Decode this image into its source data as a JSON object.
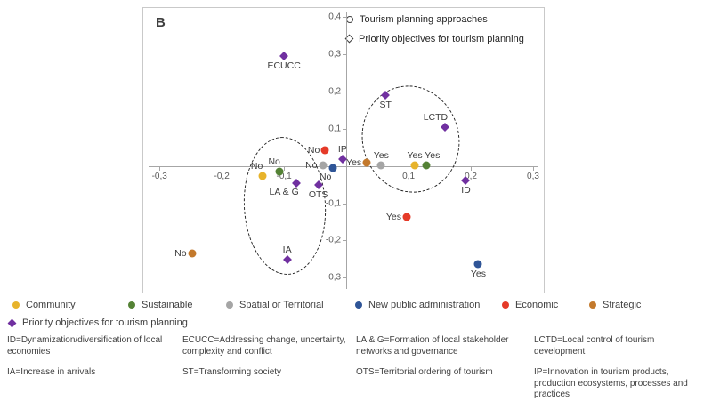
{
  "plot_legend": [
    {
      "marker": "circle",
      "label": "Tourism planning approaches"
    },
    {
      "marker": "diamond",
      "label": "Priority objectives for tourism planning"
    }
  ],
  "approach_legend": [
    {
      "label": "Community",
      "color": "#e7b32b"
    },
    {
      "label": "Sustainable",
      "color": "#548235"
    },
    {
      "label": "Spatial or Territorial",
      "color": "#a5a5a5"
    },
    {
      "label": "New public administration",
      "color": "#2f5597"
    },
    {
      "label": "Economic",
      "color": "#e53a28"
    },
    {
      "label": "Strategic",
      "color": "#c3792c"
    }
  ],
  "priority_legend": {
    "label": "Priority objectives for tourism planning",
    "color": "#7030a0"
  },
  "definitions": [
    "ID=Dynamization/diversification of local economies",
    "ECUCC=Addressing change, uncertainty, complexity and conflict",
    "LA & G=Formation of local stakeholder networks and governance",
    "LCTD=Local control of tourism development",
    "IA=Increase in arrivals",
    "ST=Transforming society",
    "OTS=Territorial ordering of tourism",
    "IP=Innovation in tourism products, production ecosystems, processes and practices"
  ],
  "chart_data": {
    "type": "scatter",
    "title": "B",
    "xlim": [
      -0.326,
      0.32
    ],
    "ylim": [
      -0.345,
      0.425
    ],
    "xticks": [
      -0.3,
      -0.2,
      -0.1,
      0.1,
      0.2,
      0.3
    ],
    "yticks": [
      0.4,
      0.3,
      0.2,
      0.1,
      -0.1,
      -0.2,
      -0.3
    ],
    "decimal_separator": ",",
    "series": [
      {
        "name": "Community",
        "marker": "circle",
        "color": "#e7b32b",
        "points": [
          {
            "label": "No",
            "x": -0.135,
            "y": -0.028,
            "label_pos": "above-left"
          },
          {
            "label": "Yes",
            "x": 0.11,
            "y": 0.001,
            "label_pos": "above"
          }
        ]
      },
      {
        "name": "Sustainable",
        "marker": "circle",
        "color": "#548235",
        "points": [
          {
            "label": "No",
            "x": -0.107,
            "y": -0.015,
            "label_pos": "above-left"
          },
          {
            "label": "Yes",
            "x": 0.128,
            "y": 0.001,
            "label_pos": "above-right"
          }
        ]
      },
      {
        "name": "Spatial or Territorial",
        "marker": "circle",
        "color": "#a5a5a5",
        "points": [
          {
            "label": "No",
            "x": -0.038,
            "y": 0.002,
            "label_pos": "left"
          },
          {
            "label": "Yes",
            "x": 0.056,
            "y": 0.001,
            "label_pos": "above"
          }
        ]
      },
      {
        "name": "New public administration",
        "marker": "circle",
        "color": "#2f5597",
        "points": [
          {
            "label": "No",
            "x": -0.022,
            "y": -0.006,
            "label_pos": "below-left"
          },
          {
            "label": "Yes",
            "x": 0.212,
            "y": -0.264,
            "label_pos": "below"
          }
        ]
      },
      {
        "name": "Economic",
        "marker": "circle",
        "color": "#e53a28",
        "points": [
          {
            "label": "No",
            "x": -0.034,
            "y": 0.043,
            "label_pos": "left"
          },
          {
            "label": "Yes",
            "x": 0.097,
            "y": -0.137,
            "label_pos": "left"
          }
        ]
      },
      {
        "name": "Strategic",
        "marker": "circle",
        "color": "#c3792c",
        "points": [
          {
            "label": "No",
            "x": -0.248,
            "y": -0.235,
            "label_pos": "left"
          },
          {
            "label": "Yes",
            "x": 0.033,
            "y": 0.008,
            "label_pos": "left"
          }
        ]
      },
      {
        "name": "Priority objectives for tourism planning",
        "marker": "diamond",
        "color": "#7030a0",
        "points": [
          {
            "label": "ECUCC",
            "x": -0.1,
            "y": 0.295,
            "label_pos": "below"
          },
          {
            "label": "ST",
            "x": 0.063,
            "y": 0.19,
            "label_pos": "below"
          },
          {
            "label": "LCTD",
            "x": 0.158,
            "y": 0.105,
            "label_pos": "above-left"
          },
          {
            "label": "IP",
            "x": -0.006,
            "y": 0.018,
            "label_pos": "above"
          },
          {
            "label": "ID",
            "x": 0.192,
            "y": -0.04,
            "label_pos": "below"
          },
          {
            "label": "LA & G",
            "x": -0.08,
            "y": -0.046,
            "label_pos": "below-left"
          },
          {
            "label": "OTS",
            "x": -0.045,
            "y": -0.05,
            "label_pos": "below"
          },
          {
            "label": "IA",
            "x": -0.095,
            "y": -0.252,
            "label_pos": "above"
          }
        ]
      }
    ],
    "ellipses": [
      {
        "cx": -0.098,
        "cy": -0.106,
        "rx": 0.066,
        "ry": 0.185,
        "rotation": -3
      },
      {
        "cx": 0.104,
        "cy": 0.073,
        "rx": 0.078,
        "ry": 0.145,
        "rotation": -15
      }
    ]
  }
}
